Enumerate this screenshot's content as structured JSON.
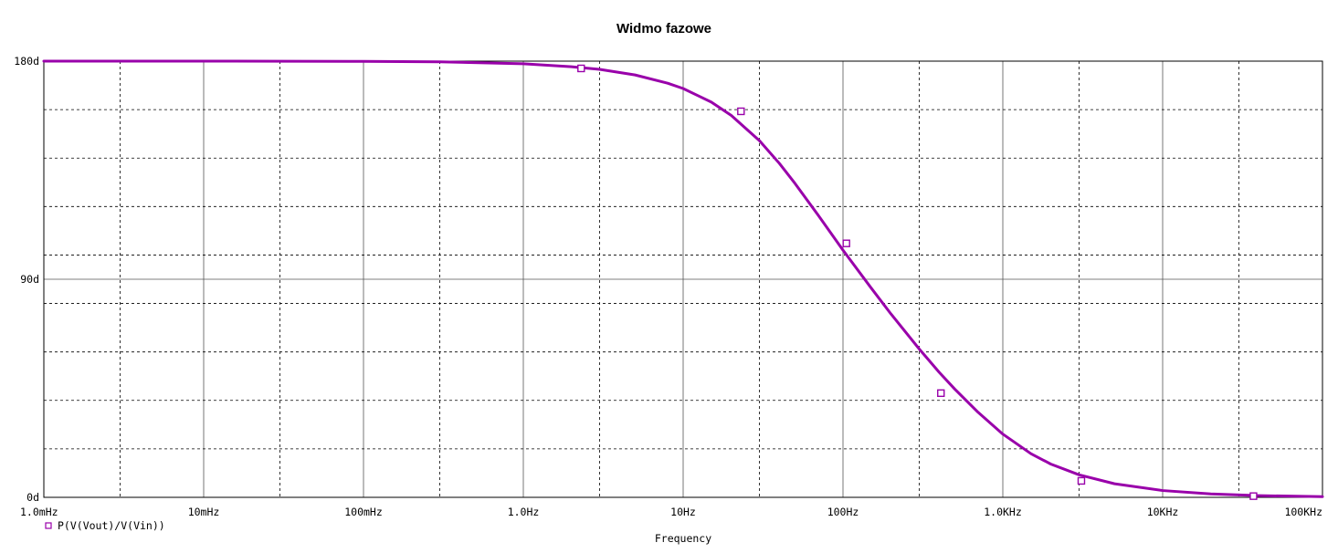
{
  "chart_data": {
    "type": "line",
    "title": "Widmo fazowe",
    "xlabel": "Frequency",
    "ylabel": "",
    "x_scale": "log",
    "xlim": [
      0.001,
      100000
    ],
    "ylim": [
      0,
      180
    ],
    "grid": true,
    "legend_position": "bottom-left",
    "x_ticks": [
      {
        "value": 0.001,
        "label": "1.0mHz"
      },
      {
        "value": 0.01,
        "label": "10mHz"
      },
      {
        "value": 0.1,
        "label": "100mHz"
      },
      {
        "value": 1,
        "label": "1.0Hz"
      },
      {
        "value": 10,
        "label": "10Hz"
      },
      {
        "value": 100,
        "label": "100Hz"
      },
      {
        "value": 1000,
        "label": "1.0KHz"
      },
      {
        "value": 10000,
        "label": "10KHz"
      },
      {
        "value": 100000,
        "label": "100KHz"
      }
    ],
    "y_ticks": [
      {
        "value": 0,
        "label": "0d"
      },
      {
        "value": 90,
        "label": "90d"
      },
      {
        "value": 180,
        "label": "180d"
      }
    ],
    "series": [
      {
        "name": "P(V(Vout)/V(Vin))",
        "color": "#9900aa",
        "marker": "hollow-square",
        "x": [
          0.001,
          0.01,
          0.1,
          0.3,
          1,
          2,
          3,
          5,
          8,
          10,
          15,
          20,
          30,
          40,
          50,
          70,
          100,
          150,
          200,
          300,
          400,
          500,
          700,
          1000,
          1500,
          2000,
          3000,
          5000,
          10000,
          20000,
          40000,
          100000
        ],
        "y": [
          180.0,
          180.0,
          179.9,
          179.7,
          178.9,
          177.7,
          176.6,
          174.3,
          170.9,
          168.7,
          163.1,
          157.6,
          147.2,
          137.8,
          129.6,
          116.4,
          102.0,
          86.4,
          75.6,
          61.2,
          51.6,
          44.7,
          35.1,
          26.1,
          18.0,
          13.7,
          9.3,
          5.6,
          2.8,
          1.4,
          0.7,
          0.3
        ],
        "marker_x": [
          2.3,
          23,
          105,
          410,
          3100,
          37000
        ],
        "marker_y": [
          177.0,
          159.3,
          104.8,
          43.0,
          6.8,
          0.5
        ]
      }
    ]
  }
}
